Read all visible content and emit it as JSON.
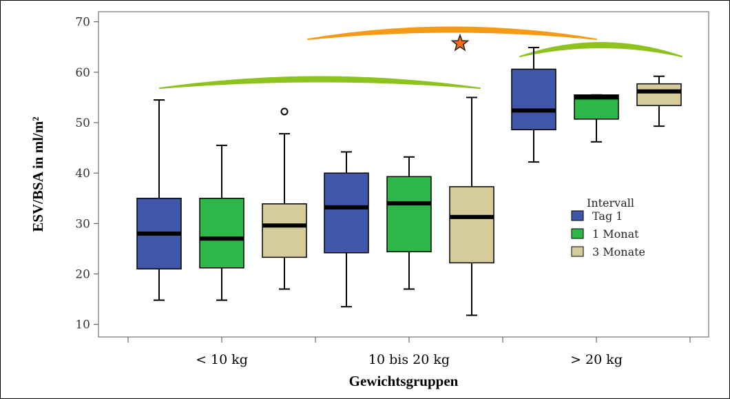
{
  "chart_data": {
    "type": "boxplot",
    "title": "",
    "xlabel": "Gewichtsgruppen",
    "ylabel": "ESV/BSA in ml/m²",
    "ylim": [
      7.5,
      72
    ],
    "yticks": [
      10,
      20,
      30,
      40,
      50,
      60,
      70
    ],
    "grid": false,
    "categories": [
      "< 10 kg",
      "10 bis 20 kg",
      "> 20 kg"
    ],
    "legend": {
      "title": "Intervall",
      "placement": "right",
      "entries": [
        {
          "name": "Tag 1",
          "color": "#3f56a9"
        },
        {
          "name": "1 Monat",
          "color": "#2eb84a"
        },
        {
          "name": "3 Monate",
          "color": "#d6cc9b"
        }
      ]
    },
    "series": [
      {
        "name": "Tag 1",
        "color": "#3f56a9",
        "boxes": [
          {
            "category": "< 10 kg",
            "min": 14.8,
            "q1": 21.0,
            "median": 28.0,
            "q3": 35.0,
            "max": 54.5,
            "outliers": []
          },
          {
            "category": "10 bis 20 kg",
            "min": 13.5,
            "q1": 24.2,
            "median": 33.2,
            "q3": 40.0,
            "max": 44.2,
            "outliers": []
          },
          {
            "category": "> 20 kg",
            "min": 42.2,
            "q1": 48.6,
            "median": 52.4,
            "q3": 60.6,
            "max": 64.9,
            "outliers": []
          }
        ]
      },
      {
        "name": "1 Monat",
        "color": "#2eb84a",
        "boxes": [
          {
            "category": "< 10 kg",
            "min": 14.8,
            "q1": 21.2,
            "median": 27.0,
            "q3": 35.0,
            "max": 45.5,
            "outliers": []
          },
          {
            "category": "10 bis 20 kg",
            "min": 17.0,
            "q1": 24.4,
            "median": 34.0,
            "q3": 39.3,
            "max": 43.2,
            "outliers": []
          },
          {
            "category": "> 20 kg",
            "min": 46.2,
            "q1": 50.7,
            "median": 55.0,
            "q3": 55.5,
            "max": 55.5,
            "outliers": []
          }
        ]
      },
      {
        "name": "3 Monate",
        "color": "#d6cc9b",
        "boxes": [
          {
            "category": "< 10 kg",
            "min": 17.0,
            "q1": 23.3,
            "median": 29.6,
            "q3": 33.9,
            "max": 47.8,
            "outliers": [
              52.2
            ]
          },
          {
            "category": "10 bis 20 kg",
            "min": 11.8,
            "q1": 22.2,
            "median": 31.3,
            "q3": 37.3,
            "max": 55.0,
            "outliers": []
          },
          {
            "category": "> 20 kg",
            "min": 49.3,
            "q1": 53.4,
            "median": 56.2,
            "q3": 57.7,
            "max": 59.2,
            "outliers": []
          }
        ]
      }
    ],
    "annotations": [
      {
        "type": "arc",
        "color": "#8dc21f",
        "spans": "< 10 kg to 10 bis 20 kg"
      },
      {
        "type": "arc",
        "color": "#f59a14",
        "spans": "10 bis 20 kg to > 20 kg"
      },
      {
        "type": "arc",
        "color": "#8dc21f",
        "spans": "> 20 kg"
      },
      {
        "type": "star",
        "color": "#f26a1b"
      }
    ]
  }
}
